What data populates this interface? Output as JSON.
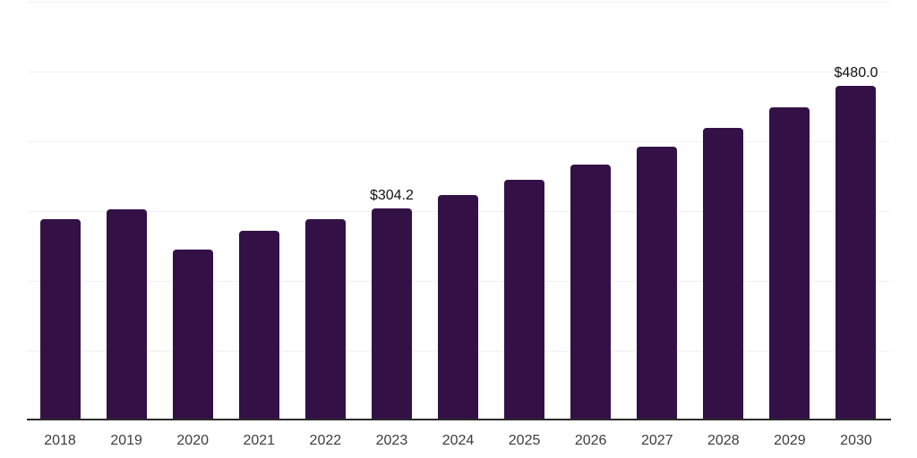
{
  "chart_data": {
    "type": "bar",
    "title": "",
    "categories": [
      "2018",
      "2019",
      "2020",
      "2021",
      "2022",
      "2023",
      "2024",
      "2025",
      "2026",
      "2027",
      "2028",
      "2029",
      "2030"
    ],
    "values": [
      288,
      302,
      245,
      272,
      289,
      304.2,
      323,
      345,
      367,
      392,
      419,
      449,
      480
    ],
    "data_labels": {
      "2023": "$304.2",
      "2030": "$480.0"
    },
    "xlabel": "",
    "ylabel": "",
    "ylim": [
      0,
      600
    ],
    "gridline_step": 100,
    "grid": "horizontal-light",
    "legend": "none",
    "y_axis_tick_labels_visible": false,
    "colors": {
      "bar": "#331147",
      "axis_line": "#2b2b2b",
      "gridline": "#f1f1f1",
      "tick_label": "#3d3d3d",
      "data_label": "#111111",
      "background": "#ffffff"
    }
  }
}
